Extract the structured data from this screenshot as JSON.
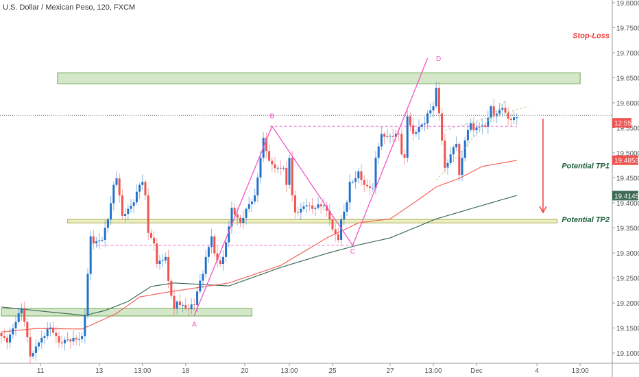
{
  "header": {
    "title": "U.S. Dollar / Mexican Peso, 120, FXCM"
  },
  "colors": {
    "up": "#2272c9",
    "down": "#ef5350",
    "ma_fast": "#f2665f",
    "ma_slow": "#3d6b57",
    "pattern": "#f053c8",
    "zone_green": "#d4e8c9",
    "zone_green_border": "#6aa84f",
    "zone_yellow": "#eef0c2",
    "zone_yellow_border": "#a8ad5a",
    "stop": "#f23c3c",
    "tp": "#1e5e3a"
  },
  "chart_data": {
    "type": "candlestick",
    "title": "U.S. Dollar / Mexican Peso, 120, FXCM",
    "ylim": [
      19.09,
      19.805
    ],
    "bar_count": 180,
    "y_ticks": [
      "19.80000",
      "19.75000",
      "19.70000",
      "19.65000",
      "19.60000",
      "19.55000",
      "19.50000",
      "19.45000",
      "19.40000",
      "19.35000",
      "19.30000",
      "19.25000",
      "19.20000",
      "19.15000",
      "19.10000"
    ],
    "x_ticks": [
      {
        "label": "11",
        "bar": 13.6
      },
      {
        "label": "13",
        "bar": 34
      },
      {
        "label": "13:00",
        "bar": 49
      },
      {
        "label": "18",
        "bar": 64
      },
      {
        "label": "20",
        "bar": 84.5
      },
      {
        "label": "13:00",
        "bar": 100
      },
      {
        "label": "25",
        "bar": 115
      },
      {
        "label": "27",
        "bar": 135
      },
      {
        "label": "13:00",
        "bar": 150
      },
      {
        "label": "Dec",
        "bar": 165
      },
      {
        "label": "4",
        "bar": 186
      },
      {
        "label": "13:00",
        "bar": 201
      }
    ],
    "close_keyframes": [
      [
        0,
        19.134
      ],
      [
        2,
        19.121
      ],
      [
        5,
        19.162
      ],
      [
        7,
        19.189
      ],
      [
        8,
        19.162
      ],
      [
        10,
        19.093
      ],
      [
        11,
        19.1
      ],
      [
        13,
        19.121
      ],
      [
        15,
        19.134
      ],
      [
        16,
        19.148
      ],
      [
        17,
        19.151
      ],
      [
        19,
        19.134
      ],
      [
        20,
        19.121
      ],
      [
        23,
        19.127
      ],
      [
        26,
        19.127
      ],
      [
        28,
        19.134
      ],
      [
        29,
        19.175
      ],
      [
        30,
        19.258
      ],
      [
        31,
        19.333
      ],
      [
        32,
        19.319
      ],
      [
        35,
        19.326
      ],
      [
        37,
        19.367
      ],
      [
        39,
        19.436
      ],
      [
        40,
        19.449
      ],
      [
        41,
        19.415
      ],
      [
        42,
        19.374
      ],
      [
        43,
        19.378
      ],
      [
        46,
        19.401
      ],
      [
        48,
        19.436
      ],
      [
        49,
        19.442
      ],
      [
        50,
        19.415
      ],
      [
        51,
        19.34
      ],
      [
        53,
        19.319
      ],
      [
        54,
        19.278
      ],
      [
        56,
        19.285
      ],
      [
        57,
        19.292
      ],
      [
        58,
        19.244
      ],
      [
        60,
        19.189
      ],
      [
        61,
        19.203
      ],
      [
        63,
        19.196
      ],
      [
        64,
        19.189
      ],
      [
        67,
        19.196
      ],
      [
        68,
        19.223
      ],
      [
        70,
        19.258
      ],
      [
        71,
        19.292
      ],
      [
        72,
        19.312
      ],
      [
        73,
        19.333
      ],
      [
        74,
        19.299
      ],
      [
        75,
        19.285
      ],
      [
        76,
        19.278
      ],
      [
        77,
        19.292
      ],
      [
        79,
        19.353
      ],
      [
        80,
        19.39
      ],
      [
        83,
        19.36
      ],
      [
        85,
        19.388
      ],
      [
        88,
        19.415
      ],
      [
        90,
        19.49
      ],
      [
        91,
        19.53
      ],
      [
        93,
        19.484
      ],
      [
        94,
        19.477
      ],
      [
        96,
        19.47
      ],
      [
        98,
        19.47
      ],
      [
        99,
        19.436
      ],
      [
        100,
        19.49
      ],
      [
        101,
        19.415
      ],
      [
        102,
        19.381
      ],
      [
        104,
        19.388
      ],
      [
        106,
        19.395
      ],
      [
        108,
        19.388
      ],
      [
        110,
        19.397
      ],
      [
        112,
        19.395
      ],
      [
        114,
        19.367
      ],
      [
        115,
        19.347
      ],
      [
        117,
        19.326
      ],
      [
        118,
        19.367
      ],
      [
        120,
        19.401
      ],
      [
        121,
        19.442
      ],
      [
        123,
        19.449
      ],
      [
        124,
        19.463
      ],
      [
        126,
        19.436
      ],
      [
        128,
        19.43
      ],
      [
        129,
        19.43
      ],
      [
        130,
        19.49
      ],
      [
        132,
        19.538
      ],
      [
        133,
        19.532
      ],
      [
        136,
        19.532
      ],
      [
        138,
        19.538
      ],
      [
        139,
        19.497
      ],
      [
        140,
        19.49
      ],
      [
        141,
        19.573
      ],
      [
        143,
        19.538
      ],
      [
        145,
        19.552
      ],
      [
        147,
        19.559
      ],
      [
        148,
        19.579
      ],
      [
        150,
        19.593
      ],
      [
        151,
        19.63
      ],
      [
        152,
        19.579
      ],
      [
        154,
        19.47
      ],
      [
        156,
        19.497
      ],
      [
        157,
        19.511
      ],
      [
        158,
        19.518
      ],
      [
        159,
        19.456
      ],
      [
        160,
        19.49
      ],
      [
        161,
        19.525
      ],
      [
        163,
        19.559
      ],
      [
        164,
        19.545
      ],
      [
        166,
        19.552
      ],
      [
        168,
        19.552
      ],
      [
        170,
        19.593
      ],
      [
        171,
        19.573
      ],
      [
        173,
        19.586
      ],
      [
        174,
        19.59
      ],
      [
        176,
        19.568
      ],
      [
        178,
        19.571
      ],
      [
        179,
        19.571
      ]
    ],
    "ma_fast_keyframes": [
      [
        0,
        19.142
      ],
      [
        12,
        19.149
      ],
      [
        28,
        19.148
      ],
      [
        32,
        19.158
      ],
      [
        40,
        19.179
      ],
      [
        48,
        19.212
      ],
      [
        57,
        19.221
      ],
      [
        79,
        19.24
      ],
      [
        97,
        19.275
      ],
      [
        113,
        19.33
      ],
      [
        124,
        19.36
      ],
      [
        135,
        19.368
      ],
      [
        143,
        19.399
      ],
      [
        151,
        19.432
      ],
      [
        159,
        19.449
      ],
      [
        167,
        19.473
      ],
      [
        179,
        19.485
      ]
    ],
    "ma_slow_keyframes": [
      [
        0,
        19.192
      ],
      [
        10,
        19.186
      ],
      [
        29,
        19.175
      ],
      [
        36,
        19.185
      ],
      [
        44,
        19.203
      ],
      [
        52,
        19.233
      ],
      [
        60,
        19.24
      ],
      [
        79,
        19.234
      ],
      [
        97,
        19.271
      ],
      [
        113,
        19.299
      ],
      [
        124,
        19.316
      ],
      [
        135,
        19.33
      ],
      [
        151,
        19.368
      ],
      [
        167,
        19.395
      ],
      [
        179,
        19.415
      ]
    ],
    "zones": [
      {
        "name": "resistance-zone",
        "from_bar": 19.5,
        "to_bar": 201,
        "top": 19.66,
        "bottom": 19.638,
        "kind": "green"
      },
      {
        "name": "tp2-zone",
        "from_bar": 23,
        "to_bar": 193,
        "top": 19.367,
        "bottom": 19.36,
        "kind": "yellow"
      },
      {
        "name": "support-zone",
        "from_bar": 0,
        "to_bar": 87,
        "top": 19.189,
        "bottom": 19.174,
        "kind": "green"
      }
    ],
    "pattern": [
      {
        "label": "A",
        "bar": 67,
        "price": 19.175
      },
      {
        "label": "B",
        "bar": 94,
        "price": 19.553
      },
      {
        "label": "C",
        "bar": 122,
        "price": 19.315
      },
      {
        "label": "D",
        "bar": 148,
        "price": 19.689
      }
    ],
    "current_price_line": 19.575,
    "price_labels": [
      {
        "text": "12:55",
        "price": 19.56,
        "kind": "down"
      },
      {
        "text": "19.48537",
        "price": 19.48537,
        "kind": "down"
      },
      {
        "text": "19.41452",
        "price": 19.41452,
        "kind": "slow"
      }
    ],
    "annotations": [
      {
        "text": "Stop-Loss",
        "price": 19.735,
        "kind": "stop"
      },
      {
        "text": "Potential TP1",
        "price": 19.475,
        "kind": "tp"
      },
      {
        "text": "Potential TP2",
        "price": 19.367,
        "kind": "tp"
      }
    ]
  }
}
